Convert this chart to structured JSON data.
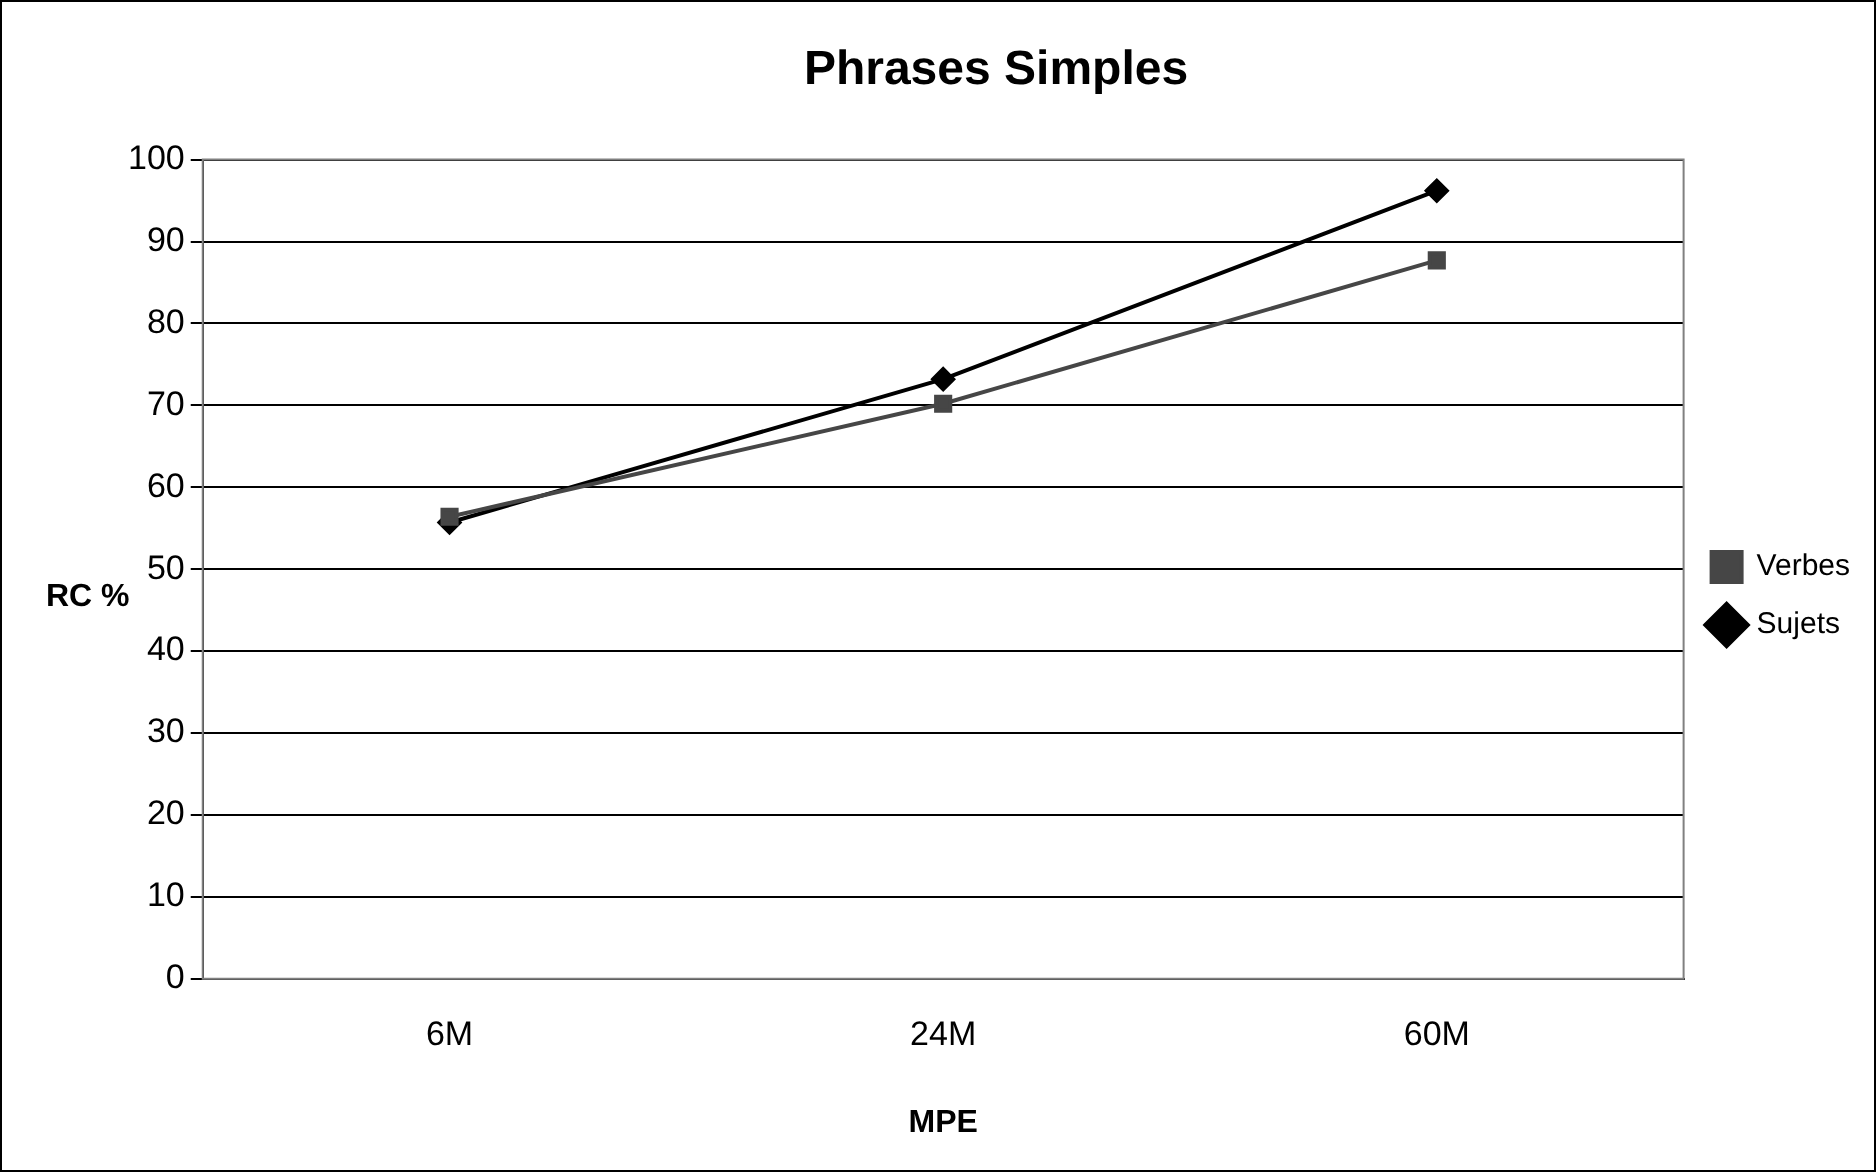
{
  "chart_data": {
    "type": "line",
    "title": "Phrases Simples",
    "xlabel": "MPE",
    "ylabel": "RC %",
    "categories": [
      "6M",
      "24M",
      "60M"
    ],
    "series": [
      {
        "name": "Sujets",
        "color": "#000000",
        "marker": "diamond",
        "values": [
          55.7,
          73.2,
          96.2
        ]
      },
      {
        "name": "Verbes",
        "color": "#464646",
        "marker": "square",
        "values": [
          56.4,
          70.2,
          87.7
        ]
      }
    ],
    "ylim": [
      0,
      100
    ],
    "yticks": [
      0,
      10,
      20,
      30,
      40,
      50,
      60,
      70,
      80,
      90,
      100
    ],
    "grid": "y",
    "legend": "right"
  }
}
